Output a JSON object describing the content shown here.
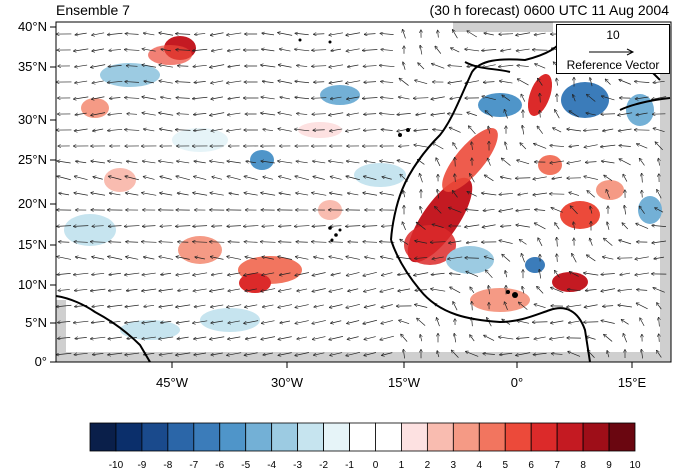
{
  "titles": {
    "left": "Ensemble 7",
    "right": "(30 h forecast) 0600 UTC 11 Aug 2004"
  },
  "axes": {
    "lat_ticks": [
      "40°N",
      "35°N",
      "30°N",
      "25°N",
      "20°N",
      "15°N",
      "10°N",
      "5°N",
      "0°"
    ],
    "lon_ticks": [
      "45°W",
      "30°W",
      "15°W",
      "0°",
      "15°E"
    ]
  },
  "reference_vector": {
    "magnitude": "10",
    "label": "Reference Vector"
  },
  "colorbar": {
    "labels": [
      "-10",
      "-9",
      "-8",
      "-7",
      "-6",
      "-5",
      "-4",
      "-3",
      "-2",
      "-1",
      "0",
      "1",
      "2",
      "3",
      "4",
      "5",
      "6",
      "7",
      "8",
      "9",
      "10"
    ],
    "colors": [
      "#0a1f4a",
      "#0b2f6b",
      "#1a4a8c",
      "#2b66a8",
      "#3b7cba",
      "#4f95c9",
      "#73b0d6",
      "#9ccbe2",
      "#c6e4ef",
      "#e6f4f8",
      "#ffffff",
      "#ffffff",
      "#fde1e1",
      "#f9bcb0",
      "#f59a85",
      "#f2755f",
      "#ec4a3a",
      "#dc2a2a",
      "#c41a22",
      "#9e0e18",
      "#6a0610"
    ]
  },
  "map": {
    "land_color": "#cfcfcf",
    "frame_color": "#000000"
  }
}
